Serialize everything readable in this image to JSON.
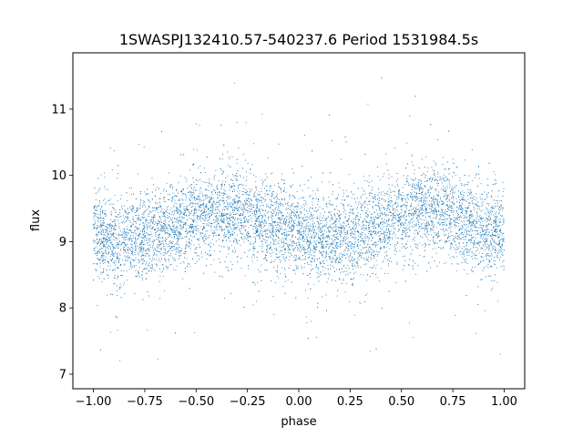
{
  "chart_data": {
    "type": "scatter",
    "title": "1SWASPJ132410.57-540237.6 Period 1531984.5s",
    "xlabel": "phase",
    "ylabel": "flux",
    "xlim": [
      -1.1,
      1.1
    ],
    "ylim": [
      6.78,
      11.85
    ],
    "x_ticks": [
      -1.0,
      -0.75,
      -0.5,
      -0.25,
      0.0,
      0.25,
      0.5,
      0.75,
      1.0
    ],
    "x_tick_labels": [
      "−1.00",
      "−0.75",
      "−0.50",
      "−0.25",
      "0.00",
      "0.25",
      "0.50",
      "0.75",
      "1.00"
    ],
    "y_ticks": [
      7,
      8,
      9,
      10,
      11
    ],
    "y_tick_labels": [
      "7",
      "8",
      "9",
      "10",
      "11"
    ],
    "grid": false,
    "marker_color": "#1f77b4",
    "series": [
      {
        "phase_range": [
          -1.0,
          1.0
        ],
        "flux_baseline": 9.2,
        "flux_typical_range": [
          8.5,
          10.0
        ],
        "flux_extreme_range": [
          7.0,
          11.5
        ],
        "profile": [
          {
            "x": -1.0,
            "y": 9.15
          },
          {
            "x": -0.9,
            "y": 9.0
          },
          {
            "x": -0.8,
            "y": 9.05
          },
          {
            "x": -0.7,
            "y": 9.15
          },
          {
            "x": -0.6,
            "y": 9.25
          },
          {
            "x": -0.5,
            "y": 9.35
          },
          {
            "x": -0.4,
            "y": 9.45
          },
          {
            "x": -0.3,
            "y": 9.45
          },
          {
            "x": -0.2,
            "y": 9.3
          },
          {
            "x": -0.1,
            "y": 9.25
          },
          {
            "x": 0.0,
            "y": 9.1
          },
          {
            "x": 0.1,
            "y": 9.0
          },
          {
            "x": 0.2,
            "y": 9.05
          },
          {
            "x": 0.3,
            "y": 9.15
          },
          {
            "x": 0.4,
            "y": 9.25
          },
          {
            "x": 0.5,
            "y": 9.35
          },
          {
            "x": 0.6,
            "y": 9.45
          },
          {
            "x": 0.7,
            "y": 9.45
          },
          {
            "x": 0.8,
            "y": 9.3
          },
          {
            "x": 0.9,
            "y": 9.2
          },
          {
            "x": 1.0,
            "y": 9.15
          }
        ]
      }
    ]
  }
}
